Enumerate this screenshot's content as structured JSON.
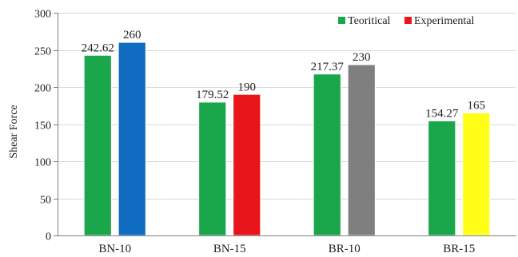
{
  "chart_data": {
    "type": "bar",
    "categories": [
      "BN-10",
      "BN-15",
      "BR-10",
      "BR-15"
    ],
    "series": [
      {
        "name": "Teoritical",
        "values": [
          242.62,
          179.52,
          217.37,
          154.27
        ],
        "color": "#1aa64a"
      },
      {
        "name": "Experimental",
        "values": [
          260,
          190,
          230,
          165
        ],
        "color": "#e8161b"
      }
    ],
    "bar_colors": {
      "Teoritical": [
        "#1aa64a",
        "#1aa64a",
        "#1aa64a",
        "#1aa64a"
      ],
      "Experimental": [
        "#0f6cc1",
        "#e8161b",
        "#7f7f7f",
        "#ffff1a"
      ]
    },
    "data_labels": {
      "Teoritical": [
        "242.62",
        "179.52",
        "217.37",
        "154.27"
      ],
      "Experimental": [
        "260",
        "190",
        "230",
        "165"
      ]
    },
    "title": "",
    "xlabel": "",
    "ylabel": "Shear Force",
    "ylim": [
      0,
      300
    ],
    "yticks": [
      0,
      50,
      100,
      150,
      200,
      250,
      300
    ],
    "grid": true,
    "legend_position": "top-right"
  }
}
